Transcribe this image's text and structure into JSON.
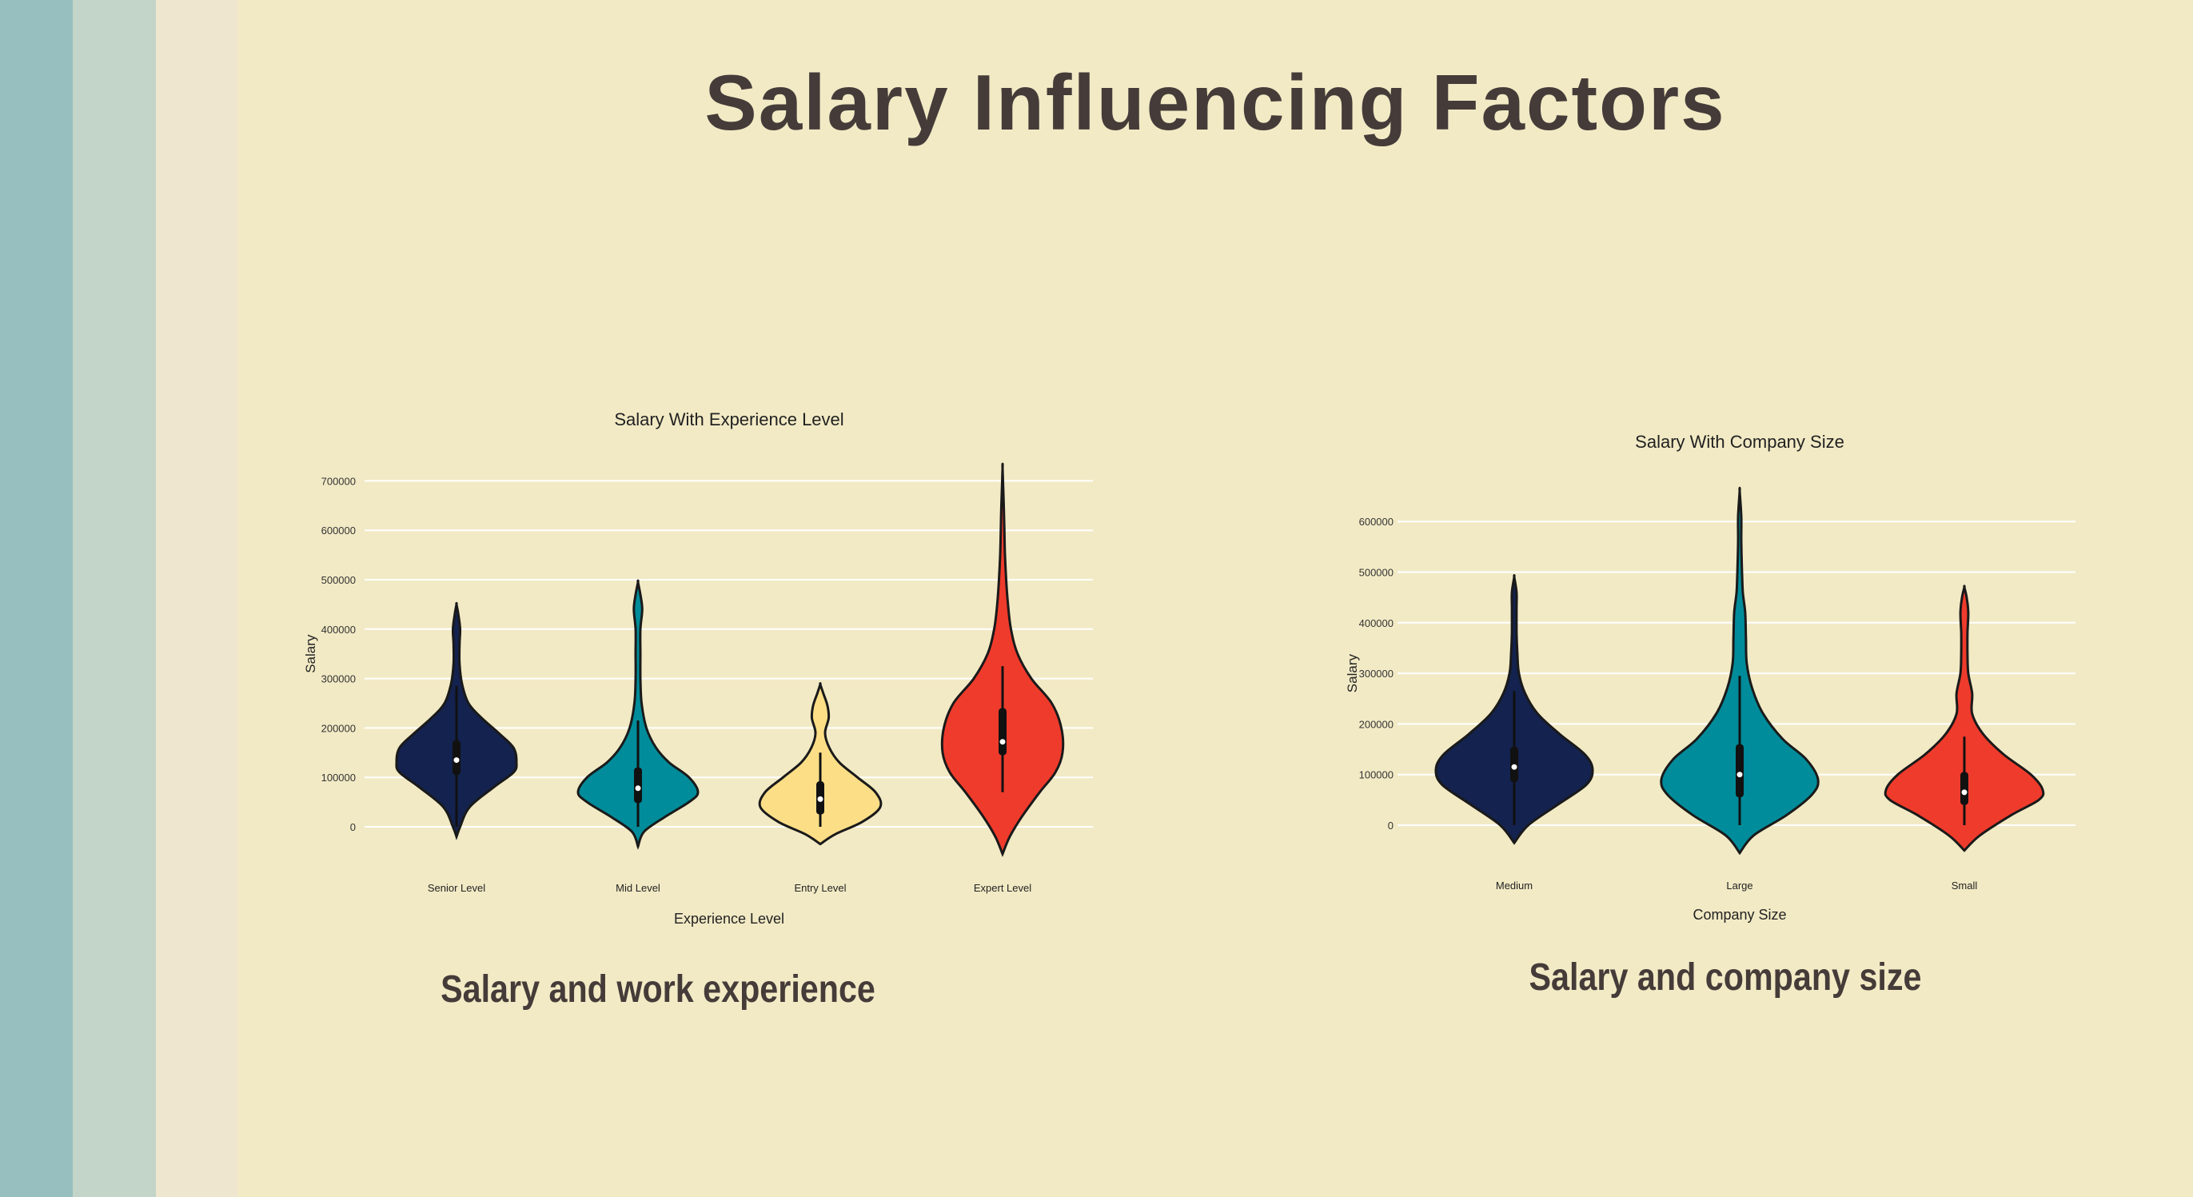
{
  "page": {
    "title": "Salary Influencing Factors",
    "left_caption": "Salary and work experience",
    "right_caption": "Salary and company size",
    "colors": {
      "background": "#F2EAC5",
      "stripes": [
        "#98BFBF",
        "#C3D4C8",
        "#EEE6CF"
      ],
      "title_text": "#453C39"
    }
  },
  "chart_data": [
    {
      "type": "violin",
      "title": "Salary With Experience Level",
      "xlabel": "Experience Level",
      "ylabel": "Salary",
      "ylim": [
        -50000,
        725000
      ],
      "yticks": [
        0,
        100000,
        200000,
        300000,
        400000,
        500000,
        600000,
        700000
      ],
      "ytick_labels": [
        "0",
        "100000",
        "200000",
        "300000",
        "400000",
        "500000",
        "600000",
        "700000"
      ],
      "grid": true,
      "categories": [
        "Senior Level",
        "Mid Level",
        "Entry Level",
        "Expert Level"
      ],
      "series": [
        {
          "color": "#13224E",
          "min": -20000,
          "max": 450000,
          "q1": 105000,
          "median": 135000,
          "q3": 175000,
          "whisker_low": 0,
          "whisker_high": 285000,
          "density": [
            [
              -20000,
              0
            ],
            [
              0,
              0.06
            ],
            [
              40000,
              0.22
            ],
            [
              80000,
              0.62
            ],
            [
              110000,
              0.95
            ],
            [
              130000,
              1
            ],
            [
              160000,
              0.95
            ],
            [
              190000,
              0.7
            ],
            [
              220000,
              0.42
            ],
            [
              250000,
              0.2
            ],
            [
              290000,
              0.09
            ],
            [
              330000,
              0.05
            ],
            [
              370000,
              0.05
            ],
            [
              400000,
              0.06
            ],
            [
              430000,
              0.03
            ],
            [
              450000,
              0
            ]
          ]
        },
        {
          "color": "#008C9A",
          "min": -40000,
          "max": 495000,
          "q1": 48000,
          "median": 78000,
          "q3": 120000,
          "whisker_low": 0,
          "whisker_high": 215000,
          "density": [
            [
              -40000,
              0
            ],
            [
              -10000,
              0.1
            ],
            [
              20000,
              0.45
            ],
            [
              50000,
              0.85
            ],
            [
              70000,
              1
            ],
            [
              100000,
              0.85
            ],
            [
              130000,
              0.52
            ],
            [
              160000,
              0.3
            ],
            [
              200000,
              0.14
            ],
            [
              250000,
              0.06
            ],
            [
              300000,
              0.04
            ],
            [
              350000,
              0.04
            ],
            [
              400000,
              0.04
            ],
            [
              440000,
              0.07
            ],
            [
              470000,
              0.04
            ],
            [
              495000,
              0
            ]
          ]
        },
        {
          "color": "#FCDE87",
          "min": -35000,
          "max": 288000,
          "q1": 25000,
          "median": 56000,
          "q3": 92000,
          "whisker_low": 0,
          "whisker_high": 150000,
          "density": [
            [
              -35000,
              0
            ],
            [
              -15000,
              0.25
            ],
            [
              10000,
              0.7
            ],
            [
              40000,
              1
            ],
            [
              70000,
              0.92
            ],
            [
              100000,
              0.62
            ],
            [
              130000,
              0.32
            ],
            [
              160000,
              0.15
            ],
            [
              190000,
              0.08
            ],
            [
              220000,
              0.14
            ],
            [
              245000,
              0.12
            ],
            [
              270000,
              0.05
            ],
            [
              288000,
              0
            ]
          ]
        },
        {
          "color": "#EF3B2C",
          "min": -55000,
          "max": 725000,
          "q1": 145000,
          "median": 172000,
          "q3": 240000,
          "whisker_low": 70000,
          "whisker_high": 325000,
          "density": [
            [
              -55000,
              0
            ],
            [
              -20000,
              0.12
            ],
            [
              20000,
              0.32
            ],
            [
              70000,
              0.62
            ],
            [
              110000,
              0.88
            ],
            [
              150000,
              1
            ],
            [
              200000,
              0.98
            ],
            [
              250000,
              0.82
            ],
            [
              300000,
              0.48
            ],
            [
              350000,
              0.25
            ],
            [
              400000,
              0.14
            ],
            [
              450000,
              0.09
            ],
            [
              500000,
              0.06
            ],
            [
              550000,
              0.04
            ],
            [
              600000,
              0.03
            ],
            [
              650000,
              0.02
            ],
            [
              725000,
              0
            ]
          ]
        }
      ]
    },
    {
      "type": "violin",
      "title": "Salary With Company Size",
      "xlabel": "Company Size",
      "ylabel": "Salary",
      "ylim": [
        -55000,
        660000
      ],
      "yticks": [
        0,
        100000,
        200000,
        300000,
        400000,
        500000,
        600000
      ],
      "ytick_labels": [
        "0",
        "100000",
        "200000",
        "300000",
        "400000",
        "500000",
        "600000"
      ],
      "grid": true,
      "categories": [
        "Medium",
        "Large",
        "Small"
      ],
      "series": [
        {
          "color": "#13224E",
          "min": -35000,
          "max": 490000,
          "q1": 85000,
          "median": 115000,
          "q3": 155000,
          "whisker_low": 0,
          "whisker_high": 265000,
          "density": [
            [
              -35000,
              0
            ],
            [
              0,
              0.18
            ],
            [
              40000,
              0.55
            ],
            [
              80000,
              0.92
            ],
            [
              110000,
              1
            ],
            [
              140000,
              0.9
            ],
            [
              180000,
              0.58
            ],
            [
              220000,
              0.3
            ],
            [
              260000,
              0.14
            ],
            [
              300000,
              0.06
            ],
            [
              340000,
              0.04
            ],
            [
              380000,
              0.03
            ],
            [
              430000,
              0.03
            ],
            [
              460000,
              0.03
            ],
            [
              490000,
              0
            ]
          ]
        },
        {
          "color": "#008C9A",
          "min": -55000,
          "max": 660000,
          "q1": 55000,
          "median": 100000,
          "q3": 160000,
          "whisker_low": 0,
          "whisker_high": 295000,
          "density": [
            [
              -55000,
              0
            ],
            [
              -20000,
              0.18
            ],
            [
              20000,
              0.6
            ],
            [
              60000,
              0.92
            ],
            [
              90000,
              1
            ],
            [
              130000,
              0.85
            ],
            [
              170000,
              0.55
            ],
            [
              220000,
              0.3
            ],
            [
              270000,
              0.16
            ],
            [
              320000,
              0.09
            ],
            [
              370000,
              0.08
            ],
            [
              420000,
              0.07
            ],
            [
              460000,
              0.04
            ],
            [
              500000,
              0.03
            ],
            [
              560000,
              0.02
            ],
            [
              610000,
              0.02
            ],
            [
              660000,
              0
            ]
          ]
        },
        {
          "color": "#EF3B2C",
          "min": -50000,
          "max": 470000,
          "q1": 40000,
          "median": 65000,
          "q3": 105000,
          "whisker_low": 0,
          "whisker_high": 175000,
          "density": [
            [
              -50000,
              0
            ],
            [
              -20000,
              0.2
            ],
            [
              20000,
              0.6
            ],
            [
              50000,
              0.95
            ],
            [
              70000,
              1
            ],
            [
              100000,
              0.85
            ],
            [
              140000,
              0.5
            ],
            [
              180000,
              0.24
            ],
            [
              220000,
              0.1
            ],
            [
              260000,
              0.1
            ],
            [
              300000,
              0.05
            ],
            [
              340000,
              0.04
            ],
            [
              380000,
              0.04
            ],
            [
              420000,
              0.05
            ],
            [
              450000,
              0.03
            ],
            [
              470000,
              0
            ]
          ]
        }
      ]
    }
  ]
}
